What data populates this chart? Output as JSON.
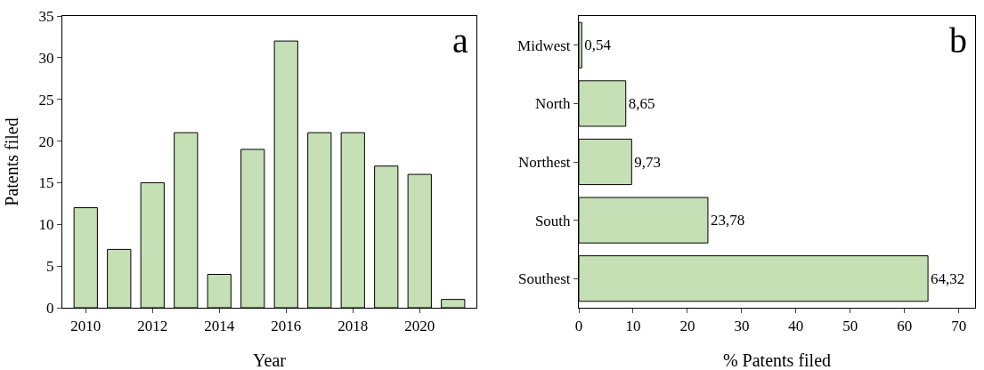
{
  "chart_data": [
    {
      "type": "bar",
      "x": [
        2010,
        2011,
        2012,
        2013,
        2014,
        2015,
        2016,
        2017,
        2018,
        2019,
        2020,
        2021
      ],
      "values": [
        12,
        7,
        15,
        21,
        4,
        19,
        32,
        21,
        21,
        17,
        16,
        1
      ],
      "color": "#c5e0b4",
      "xlabel": "Year",
      "ylabel": "Patents filed",
      "xlim": [
        2009.3,
        2021.7
      ],
      "xticks": [
        2010,
        2012,
        2014,
        2016,
        2018,
        2020
      ],
      "ylim": [
        0,
        35
      ],
      "yticks": [
        0,
        5,
        10,
        15,
        20,
        25,
        30,
        35
      ],
      "grid": false,
      "annotations": [
        "a"
      ]
    },
    {
      "type": "bar",
      "orientation": "horizontal",
      "categories": [
        "Midwest",
        "North",
        "Northest",
        "South",
        "Southest"
      ],
      "values": [
        0.54,
        8.65,
        9.73,
        23.78,
        64.32
      ],
      "value_labels": [
        "0,54",
        "8,65",
        "9,73",
        "23,78",
        "64,32"
      ],
      "color": "#c5e0b4",
      "xlabel": "% Patents filed",
      "xlim": [
        0,
        73
      ],
      "xticks": [
        0,
        10,
        20,
        30,
        40,
        50,
        60,
        70
      ],
      "grid": false,
      "annotations": [
        "b"
      ]
    }
  ]
}
